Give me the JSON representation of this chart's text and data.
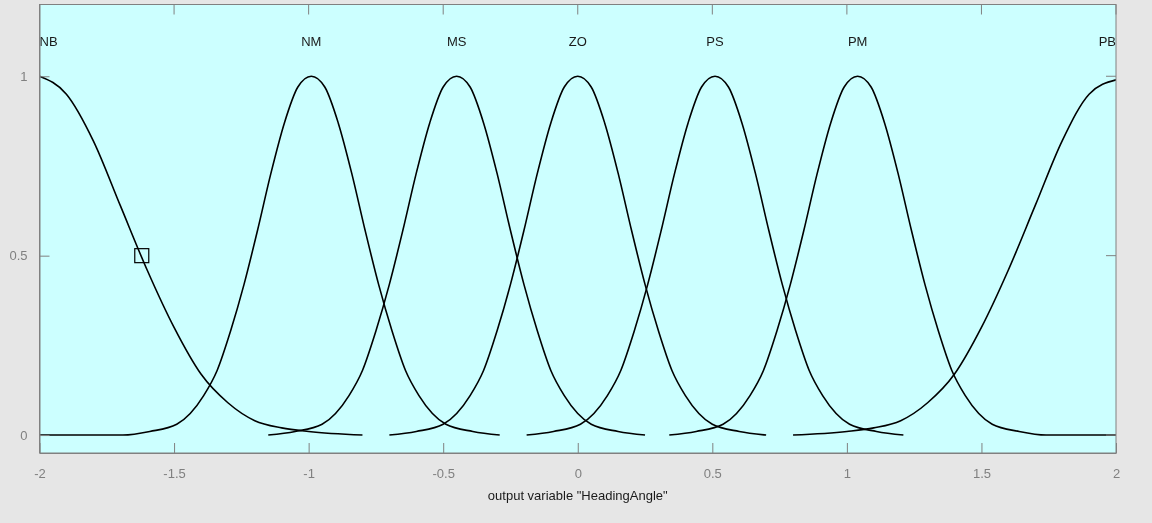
{
  "chart_data": {
    "type": "line",
    "xlabel": "output variable \"HeadingAngle\"",
    "xlim": [
      -2,
      2
    ],
    "ylim": [
      -0.05,
      1.2
    ],
    "xticks": [
      -2,
      -1.5,
      -1,
      -0.5,
      0,
      0.5,
      1,
      1.5,
      2
    ],
    "yticks": [
      0,
      0.5,
      1
    ],
    "grid": false,
    "legend": false,
    "series": [
      {
        "name": "NB",
        "color": "#000000",
        "x": [
          -2,
          -1.9,
          -1.8,
          -1.7,
          -1.6,
          -1.5,
          -1.4,
          -1.3,
          -1.2,
          -1.1,
          -1.0,
          -0.8
        ],
        "values": [
          1,
          0.95,
          0.82,
          0.64,
          0.46,
          0.3,
          0.17,
          0.09,
          0.04,
          0.02,
          0.01,
          0
        ]
      },
      {
        "name": "NM",
        "color": "#000000",
        "x": [
          -2,
          -1.69,
          -1.59,
          -1.49,
          -1.44,
          -1.39,
          -1.34,
          -1.29,
          -1.24,
          -1.19,
          -1.14,
          -1.09,
          -1.04,
          -0.99,
          -0.94,
          -0.89,
          -0.84,
          -0.79,
          -0.74,
          -0.69,
          -0.64,
          -0.59,
          -0.54,
          -0.49,
          -0.39,
          -0.29
        ],
        "values": [
          0,
          0,
          0.01,
          0.03,
          0.06,
          0.11,
          0.18,
          0.29,
          0.42,
          0.57,
          0.73,
          0.87,
          0.97,
          1,
          0.97,
          0.87,
          0.73,
          0.57,
          0.42,
          0.29,
          0.18,
          0.11,
          0.06,
          0.03,
          0.01,
          0
        ]
      },
      {
        "name": "MS",
        "color": "#000000",
        "x": [
          -1.15,
          -1.05,
          -0.95,
          -0.9,
          -0.85,
          -0.8,
          -0.75,
          -0.7,
          -0.65,
          -0.6,
          -0.55,
          -0.5,
          -0.45,
          -0.4,
          -0.35,
          -0.3,
          -0.25,
          -0.2,
          -0.15,
          -0.1,
          -0.05,
          0,
          0.05,
          0.15,
          0.25
        ],
        "values": [
          0,
          0.01,
          0.03,
          0.06,
          0.11,
          0.18,
          0.29,
          0.42,
          0.57,
          0.73,
          0.87,
          0.97,
          1,
          0.97,
          0.87,
          0.73,
          0.57,
          0.42,
          0.29,
          0.18,
          0.11,
          0.06,
          0.03,
          0.01,
          0
        ]
      },
      {
        "name": "ZO",
        "color": "#000000",
        "x": [
          -0.7,
          -0.6,
          -0.5,
          -0.45,
          -0.4,
          -0.35,
          -0.3,
          -0.25,
          -0.2,
          -0.15,
          -0.1,
          -0.05,
          0,
          0.05,
          0.1,
          0.15,
          0.2,
          0.25,
          0.3,
          0.35,
          0.4,
          0.45,
          0.5,
          0.6,
          0.7
        ],
        "values": [
          0,
          0.01,
          0.03,
          0.06,
          0.11,
          0.18,
          0.29,
          0.42,
          0.57,
          0.73,
          0.87,
          0.97,
          1,
          0.97,
          0.87,
          0.73,
          0.57,
          0.42,
          0.29,
          0.18,
          0.11,
          0.06,
          0.03,
          0.01,
          0
        ]
      },
      {
        "name": "PS",
        "color": "#000000",
        "x": [
          -0.19,
          -0.09,
          0.01,
          0.06,
          0.11,
          0.16,
          0.21,
          0.26,
          0.31,
          0.36,
          0.41,
          0.46,
          0.51,
          0.56,
          0.61,
          0.66,
          0.71,
          0.76,
          0.81,
          0.86,
          0.91,
          0.96,
          1.01,
          1.11,
          1.21
        ],
        "values": [
          0,
          0.01,
          0.03,
          0.06,
          0.11,
          0.18,
          0.29,
          0.42,
          0.57,
          0.73,
          0.87,
          0.97,
          1,
          0.97,
          0.87,
          0.73,
          0.57,
          0.42,
          0.29,
          0.18,
          0.11,
          0.06,
          0.03,
          0.01,
          0
        ]
      },
      {
        "name": "PM",
        "color": "#000000",
        "x": [
          0.34,
          0.44,
          0.54,
          0.59,
          0.64,
          0.69,
          0.74,
          0.79,
          0.84,
          0.89,
          0.94,
          0.99,
          1.04,
          1.09,
          1.14,
          1.19,
          1.24,
          1.29,
          1.34,
          1.39,
          1.44,
          1.49,
          1.54,
          1.64,
          1.74,
          2
        ],
        "values": [
          0,
          0.01,
          0.03,
          0.06,
          0.11,
          0.18,
          0.29,
          0.42,
          0.57,
          0.73,
          0.87,
          0.97,
          1,
          0.97,
          0.87,
          0.73,
          0.57,
          0.42,
          0.29,
          0.18,
          0.11,
          0.06,
          0.03,
          0.01,
          0,
          0
        ]
      },
      {
        "name": "PB",
        "color": "#000000",
        "x": [
          0.8,
          1.0,
          1.1,
          1.2,
          1.3,
          1.4,
          1.5,
          1.6,
          1.7,
          1.8,
          1.9,
          2
        ],
        "values": [
          0,
          0.01,
          0.02,
          0.04,
          0.09,
          0.17,
          0.3,
          0.46,
          0.64,
          0.82,
          0.95,
          0.99
        ]
      },
      {
        "type": "scatter",
        "marker": "square",
        "color": "#000000",
        "x": [
          -1.62
        ],
        "values": [
          0.5
        ]
      }
    ]
  }
}
